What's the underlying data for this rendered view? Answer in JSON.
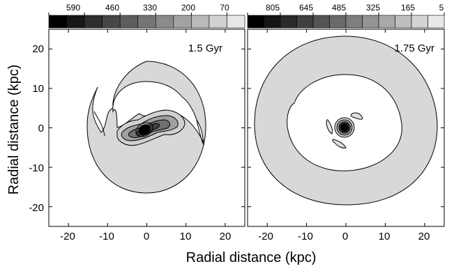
{
  "chart_data": [
    {
      "type": "contour",
      "panel_label": "1.5 Gyr",
      "colorbar": {
        "tick_labels": [
          "590",
          "460",
          "330",
          "200",
          "70"
        ],
        "levels": 11,
        "ticks_every": 2
      },
      "x": {
        "range": [
          -25,
          25
        ],
        "ticks": [
          -20,
          -10,
          0,
          10,
          20
        ]
      },
      "y": {
        "range": [
          -25,
          25
        ],
        "ticks": [
          -20,
          -10,
          0,
          10,
          20
        ]
      },
      "features": [
        {
          "kind": "ring",
          "inner_radius": 10.5,
          "outer_radius": 16.5,
          "level": 1,
          "shape": "two-armed spiral, open gaps"
        },
        {
          "kind": "bar",
          "orientation_deg": 30,
          "half_length": 7,
          "peak_level": 11
        }
      ]
    },
    {
      "type": "contour",
      "panel_label": "1.75 Gyr",
      "colorbar": {
        "tick_labels": [
          "805",
          "645",
          "485",
          "325",
          "165",
          "5"
        ],
        "levels": 12,
        "ticks_every": 2
      },
      "x": {
        "range": [
          -25,
          25
        ],
        "ticks": [
          -20,
          -10,
          0,
          10,
          20
        ]
      },
      "y": {
        "range": [
          -25,
          25
        ],
        "ticks": [
          -20,
          -10,
          0,
          10,
          20
        ]
      },
      "features": [
        {
          "kind": "ring",
          "inner_radius": 13.5,
          "outer_radius": 23,
          "level": 1,
          "shape": "closed ring"
        },
        {
          "kind": "core",
          "radius": 2,
          "peak_level": 12,
          "surrounded_by": "three small arcs"
        }
      ]
    }
  ],
  "labels": {
    "xlabel": "Radial distance (kpc)",
    "ylabel": "Radial distance (kpc)"
  },
  "colors": {
    "frame": "#000000",
    "ring_fill": "#d8d8d8",
    "contour_line": "#000000",
    "colorbar_dark": "#000000",
    "colorbar_light": "#e8e8e8"
  }
}
